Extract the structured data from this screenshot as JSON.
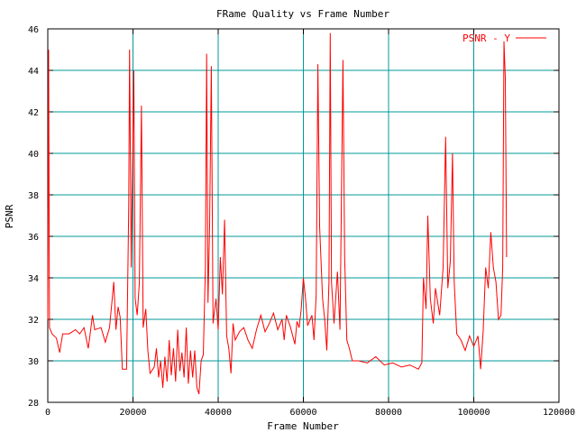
{
  "chart_data": {
    "type": "line",
    "title": "FRame Quality vs Frame Number",
    "xlabel": "Frame Number",
    "ylabel": "PSNR",
    "xlim": [
      0,
      120000
    ],
    "ylim": [
      28,
      46
    ],
    "xticks": [
      0,
      20000,
      40000,
      60000,
      80000,
      100000,
      120000
    ],
    "yticks": [
      28,
      30,
      32,
      34,
      36,
      38,
      40,
      42,
      44,
      46
    ],
    "grid": true,
    "grid_color": "#009999",
    "legend_position": "top-right",
    "series": [
      {
        "name": "PSNR - Y",
        "color": "#ff0000",
        "points": [
          [
            0,
            32.0
          ],
          [
            200,
            45.0
          ],
          [
            400,
            31.6
          ],
          [
            1000,
            31.3
          ],
          [
            2000,
            31.1
          ],
          [
            2800,
            30.4
          ],
          [
            3500,
            31.3
          ],
          [
            5000,
            31.3
          ],
          [
            6500,
            31.5
          ],
          [
            7500,
            31.3
          ],
          [
            8500,
            31.6
          ],
          [
            9500,
            30.6
          ],
          [
            10000,
            31.4
          ],
          [
            10500,
            32.2
          ],
          [
            11000,
            31.5
          ],
          [
            12500,
            31.6
          ],
          [
            13500,
            30.9
          ],
          [
            14500,
            31.6
          ],
          [
            15500,
            33.8
          ],
          [
            16000,
            31.5
          ],
          [
            16500,
            32.6
          ],
          [
            17000,
            32.1
          ],
          [
            17500,
            29.6
          ],
          [
            18500,
            29.6
          ],
          [
            19000,
            37.5
          ],
          [
            19200,
            45.0
          ],
          [
            19600,
            34.5
          ],
          [
            20200,
            44.0
          ],
          [
            20500,
            33.0
          ],
          [
            21000,
            32.2
          ],
          [
            21500,
            33.8
          ],
          [
            22000,
            42.3
          ],
          [
            22400,
            31.6
          ],
          [
            23000,
            32.5
          ],
          [
            23500,
            30.5
          ],
          [
            24000,
            29.4
          ],
          [
            25000,
            29.7
          ],
          [
            25500,
            30.6
          ],
          [
            26000,
            29.2
          ],
          [
            26500,
            30.0
          ],
          [
            27000,
            28.7
          ],
          [
            27500,
            30.2
          ],
          [
            28000,
            29.0
          ],
          [
            28500,
            31.0
          ],
          [
            29000,
            29.3
          ],
          [
            29500,
            30.6
          ],
          [
            30000,
            29.0
          ],
          [
            30500,
            31.5
          ],
          [
            31000,
            29.5
          ],
          [
            31500,
            30.4
          ],
          [
            32000,
            29.2
          ],
          [
            32500,
            31.6
          ],
          [
            33000,
            28.9
          ],
          [
            33500,
            30.5
          ],
          [
            34000,
            29.2
          ],
          [
            34500,
            30.5
          ],
          [
            35000,
            28.7
          ],
          [
            35500,
            28.4
          ],
          [
            36000,
            30.0
          ],
          [
            36500,
            30.3
          ],
          [
            37000,
            34.5
          ],
          [
            37300,
            44.8
          ],
          [
            37600,
            32.8
          ],
          [
            38000,
            36.5
          ],
          [
            38400,
            44.2
          ],
          [
            38800,
            31.8
          ],
          [
            39500,
            33.0
          ],
          [
            40000,
            31.5
          ],
          [
            40500,
            35.0
          ],
          [
            41000,
            33.2
          ],
          [
            41500,
            36.8
          ],
          [
            42000,
            31.2
          ],
          [
            42500,
            30.6
          ],
          [
            43000,
            29.4
          ],
          [
            43500,
            31.8
          ],
          [
            44000,
            31.0
          ],
          [
            45000,
            31.4
          ],
          [
            46000,
            31.6
          ],
          [
            47000,
            31.0
          ],
          [
            48000,
            30.6
          ],
          [
            49000,
            31.5
          ],
          [
            50000,
            32.2
          ],
          [
            51000,
            31.4
          ],
          [
            52000,
            31.8
          ],
          [
            53000,
            32.3
          ],
          [
            54000,
            31.5
          ],
          [
            55000,
            32.0
          ],
          [
            55500,
            31.0
          ],
          [
            56000,
            32.2
          ],
          [
            57000,
            31.6
          ],
          [
            58000,
            30.8
          ],
          [
            58500,
            31.9
          ],
          [
            59000,
            31.6
          ],
          [
            59500,
            32.5
          ],
          [
            60000,
            34.0
          ],
          [
            60500,
            33.0
          ],
          [
            61000,
            31.7
          ],
          [
            62000,
            32.2
          ],
          [
            62500,
            31.0
          ],
          [
            63000,
            33.2
          ],
          [
            63400,
            44.3
          ],
          [
            63800,
            36.5
          ],
          [
            64500,
            33.0
          ],
          [
            65000,
            32.0
          ],
          [
            65500,
            30.5
          ],
          [
            66000,
            33.8
          ],
          [
            66300,
            45.8
          ],
          [
            66600,
            33.8
          ],
          [
            67200,
            31.8
          ],
          [
            68000,
            34.3
          ],
          [
            68600,
            31.5
          ],
          [
            69300,
            44.5
          ],
          [
            69700,
            35.0
          ],
          [
            70200,
            31.0
          ],
          [
            70800,
            30.6
          ],
          [
            71500,
            30.0
          ],
          [
            73000,
            30.0
          ],
          [
            75000,
            29.9
          ],
          [
            77000,
            30.2
          ],
          [
            79000,
            29.8
          ],
          [
            81000,
            29.9
          ],
          [
            83000,
            29.7
          ],
          [
            85000,
            29.8
          ],
          [
            87000,
            29.6
          ],
          [
            87800,
            29.9
          ],
          [
            88200,
            34.0
          ],
          [
            88800,
            32.5
          ],
          [
            89200,
            37.0
          ],
          [
            89800,
            33.0
          ],
          [
            90500,
            31.8
          ],
          [
            91000,
            33.5
          ],
          [
            92000,
            32.2
          ],
          [
            92800,
            34.5
          ],
          [
            93400,
            40.8
          ],
          [
            93900,
            33.5
          ],
          [
            94500,
            34.8
          ],
          [
            95000,
            40.0
          ],
          [
            95400,
            33.8
          ],
          [
            96000,
            31.3
          ],
          [
            97000,
            31.0
          ],
          [
            98000,
            30.5
          ],
          [
            99000,
            31.2
          ],
          [
            100000,
            30.7
          ],
          [
            101000,
            31.2
          ],
          [
            101600,
            29.6
          ],
          [
            102200,
            31.4
          ],
          [
            102800,
            34.5
          ],
          [
            103400,
            33.5
          ],
          [
            104000,
            36.2
          ],
          [
            104600,
            34.5
          ],
          [
            105200,
            33.8
          ],
          [
            105800,
            32.0
          ],
          [
            106400,
            32.2
          ],
          [
            106800,
            34.5
          ],
          [
            107100,
            45.4
          ],
          [
            107400,
            43.6
          ],
          [
            107700,
            35.0
          ]
        ]
      }
    ]
  }
}
